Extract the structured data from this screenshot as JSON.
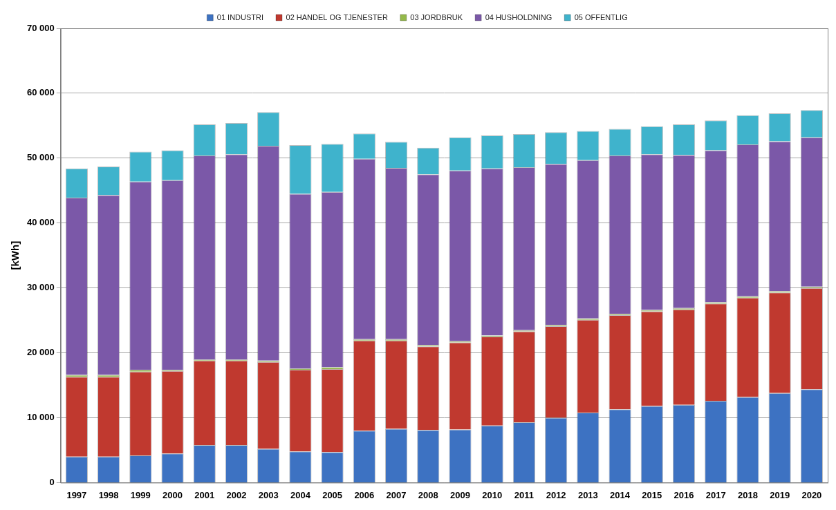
{
  "chart_data": {
    "type": "bar",
    "stacked": true,
    "grid": true,
    "legend": "top",
    "y_label": "[kWh]",
    "categories": [
      "1997",
      "1998",
      "1999",
      "2000",
      "2001",
      "2002",
      "2003",
      "2004",
      "2005",
      "2006",
      "2007",
      "2008",
      "2009",
      "2010",
      "2011",
      "2012",
      "2013",
      "2014",
      "2015",
      "2016",
      "2017",
      "2018",
      "2019",
      "2020"
    ],
    "ylim": [
      0,
      70000
    ],
    "yticks": [
      0,
      {
        "value": 10000,
        "label": "10 000"
      },
      {
        "value": 20000,
        "label": "20 000"
      },
      {
        "value": 30000,
        "label": "30 000"
      },
      {
        "value": 40000,
        "label": "40 000"
      },
      {
        "value": 50000,
        "label": "50 000"
      },
      {
        "value": 60000,
        "label": "60 000"
      },
      {
        "value": 70000,
        "label": "70 000"
      }
    ],
    "series": [
      {
        "name": "01 INDUSTRI",
        "color": "#3d72c2",
        "values": [
          4000,
          4000,
          4200,
          4500,
          5800,
          5800,
          5200,
          4800,
          4700,
          8000,
          8300,
          8100,
          8200,
          8800,
          9300,
          10000,
          10800,
          11300,
          11800,
          12000,
          12600,
          13200,
          13800,
          14400
        ]
      },
      {
        "name": "02 HANDEL OG TJENESTER",
        "color": "#c0392f",
        "values": [
          12300,
          12300,
          12900,
          12700,
          13000,
          13000,
          13400,
          12600,
          12800,
          13900,
          13600,
          12900,
          13400,
          13700,
          14000,
          14100,
          14300,
          14500,
          14600,
          14700,
          15000,
          15300,
          15500,
          15600
        ]
      },
      {
        "name": "03 JORDBRUK",
        "color": "#94b94a",
        "values": [
          300,
          300,
          300,
          200,
          200,
          200,
          200,
          200,
          300,
          200,
          200,
          200,
          200,
          200,
          200,
          200,
          200,
          200,
          200,
          200,
          200,
          200,
          200,
          200
        ]
      },
      {
        "name": "04 HUSHOLDNING",
        "color": "#7b58a8",
        "values": [
          27300,
          27700,
          29000,
          29200,
          31400,
          31600,
          33100,
          26900,
          27000,
          27800,
          26400,
          26300,
          26300,
          25700,
          25100,
          24800,
          24400,
          24400,
          24000,
          23600,
          23400,
          23400,
          23100,
          23000
        ]
      },
      {
        "name": "05 OFFENTLIG",
        "color": "#3fb3cc",
        "values": [
          4500,
          4400,
          4600,
          4600,
          4800,
          4800,
          5200,
          7500,
          7400,
          3900,
          4000,
          4100,
          5100,
          5100,
          5100,
          4900,
          4500,
          4100,
          4300,
          4700,
          4600,
          4500,
          4300,
          4200
        ]
      }
    ]
  }
}
